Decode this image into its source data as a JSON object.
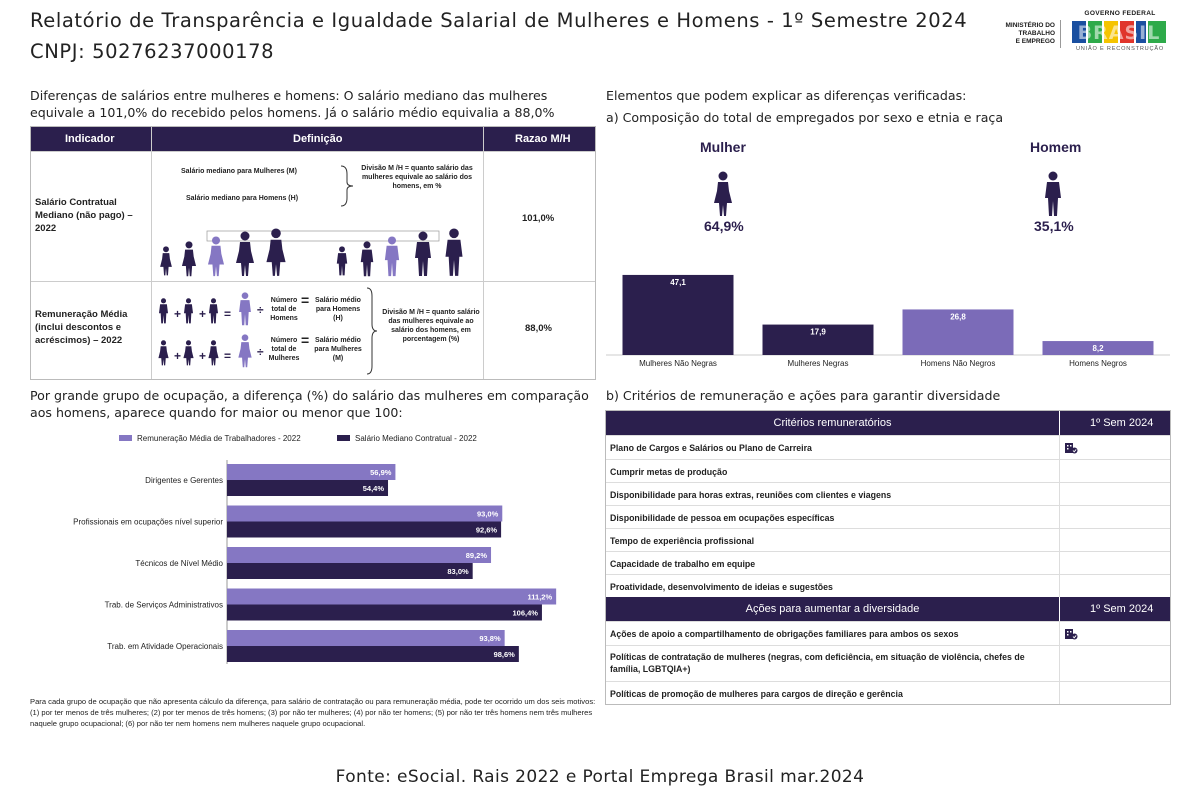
{
  "header": {
    "title": "Relatório de Transparência e Igualdade Salarial de Mulheres e Homens - 1º Semestre 2024",
    "cnpj": "CNPJ: 50276237000178",
    "ministry_lines": [
      "MINISTÉRIO DO",
      "TRABALHO",
      "E EMPREGO"
    ],
    "gov_top": "GOVERNO FEDERAL",
    "gov_word": "BRASIL",
    "gov_bottom": "UNIÃO E RECONSTRUÇÃO"
  },
  "left_intro": "Diferenças de salários entre mulheres e homens: O salário mediano das mulheres equivale a 101,0% do recebido pelos homens. Já o salário médio equivalia a 88,0%",
  "indicator_table": {
    "headers": [
      "Indicador",
      "Definição",
      "Razao M/H"
    ],
    "rows": [
      {
        "name": "Salário Contratual Mediano (não pago) – 2022",
        "value": "101,0%",
        "def_women": "Salário mediano para Mulheres (M)",
        "def_men": "Salário mediano para Homens (H)",
        "def_note": "Divisão M /H = quanto salário das mulheres equivale ao salário dos homens, em %"
      },
      {
        "name": "Remuneração Média (inclui descontos e acréscimos) – 2022",
        "value": "88,0%",
        "total_men": "Número total de Homens",
        "avg_men": "Salário médio para Homens (H)",
        "total_women": "Número total de Mulheres",
        "avg_women": "Salário médio para Mulheres (M)",
        "def_note": "Divisão M /H = quanto salário das mulheres equivale ao salário dos homens, em porcentagem (%)"
      }
    ]
  },
  "right_intro": "Elementos que podem explicar as diferenças verificadas:",
  "composition_title": "a) Composição do total de empregados por sexo e etnia e raça",
  "sex_split": {
    "women_label": "Mulher",
    "women_pct": "64,9%",
    "men_label": "Homem",
    "men_pct": "35,1%"
  },
  "occupation_intro": "Por grande grupo de ocupação, a diferença (%) do salário das mulheres em comparação aos homens, aparece quando for maior ou menor que 100:",
  "chart_data": [
    {
      "type": "bar",
      "categories": [
        "Mulheres Não Negras",
        "Mulheres Negras",
        "Homens Não Negros",
        "Homens Negros"
      ],
      "values": [
        47.1,
        17.9,
        26.8,
        8.2
      ],
      "value_labels": [
        "47,1",
        "17,9",
        "26,8",
        "8,2"
      ],
      "colors": [
        "#2b1f4d",
        "#2b1f4d",
        "#7b6bb8",
        "#7b6bb8"
      ],
      "title": "",
      "xlabel": "",
      "ylabel": "",
      "ylim": [
        0,
        50
      ],
      "grid": false
    },
    {
      "type": "bar",
      "orientation": "horizontal",
      "categories": [
        "Dirigentes e Gerentes",
        "Profissionais em ocupações nível superior",
        "Técnicos de Nível Médio",
        "Trab. de Serviços Administrativos",
        "Trab. em Atividade Operacionais"
      ],
      "series": [
        {
          "name": "Remuneração Média de Trabalhadores - 2022",
          "color": "#8577c3",
          "values": [
            56.9,
            93.0,
            89.2,
            111.2,
            93.8
          ],
          "labels": [
            "56,9%",
            "93,0%",
            "89,2%",
            "111,2%",
            "93,8%"
          ]
        },
        {
          "name": "Salário Mediano Contratual - 2022",
          "color": "#2b1f4d",
          "values": [
            54.4,
            92.6,
            83.0,
            106.4,
            98.6
          ],
          "labels": [
            "54,4%",
            "92,6%",
            "83,0%",
            "106,4%",
            "98,6%"
          ]
        }
      ],
      "title": "",
      "xlabel": "",
      "ylabel": "",
      "xlim": [
        0,
        125
      ],
      "grid": false,
      "legend": "top"
    }
  ],
  "criteria_title": "b) Critérios de remuneração e ações para garantir diversidade",
  "criteria_table": {
    "header": "Critérios remuneratórios",
    "period": "1º Sem 2024",
    "rows": [
      {
        "label": "Plano de Cargos e Salários ou Plano de Carreira",
        "checked": true
      },
      {
        "label": "Cumprir metas de produção",
        "checked": false
      },
      {
        "label": "Disponibilidade para horas extras, reuniões com clientes e viagens",
        "checked": false
      },
      {
        "label": "Disponibilidade de pessoa em ocupações específicas",
        "checked": false
      },
      {
        "label": "Tempo de experiência profissional",
        "checked": false
      },
      {
        "label": "Capacidade de trabalho em equipe",
        "checked": false
      },
      {
        "label": "Proatividade, desenvolvimento de ideias e sugestões",
        "checked": false
      }
    ]
  },
  "actions_table": {
    "header": "Ações para aumentar a diversidade",
    "period": "1º Sem 2024",
    "rows": [
      {
        "label": "Ações de apoio a compartilhamento de obrigações familiares para ambos os sexos",
        "checked": true
      },
      {
        "label": "Políticas de contratação de mulheres (negras, com deficiência, em situação de violência, chefes de família, LGBTQIA+)",
        "checked": false
      },
      {
        "label": "Políticas de promoção de mulheres para cargos de direção e gerência",
        "checked": false
      }
    ]
  },
  "footnote": "Para cada grupo de ocupação que não apresenta cálculo da diferença, para salário de contratação ou para remuneração média, pode ter ocorrido um dos seis motivos:(1) por ter menos de três mulheres; (2) por ter menos de três homens; (3) por não ter mulheres; (4) por não ter homens; (5) por não ter três homens nem três mulheres naquele grupo ocupacional; (6) por não ter nem homens nem mulheres naquele grupo ocupacional.",
  "source": "Fonte: eSocial. Rais 2022 e Portal Emprega Brasil mar.2024"
}
